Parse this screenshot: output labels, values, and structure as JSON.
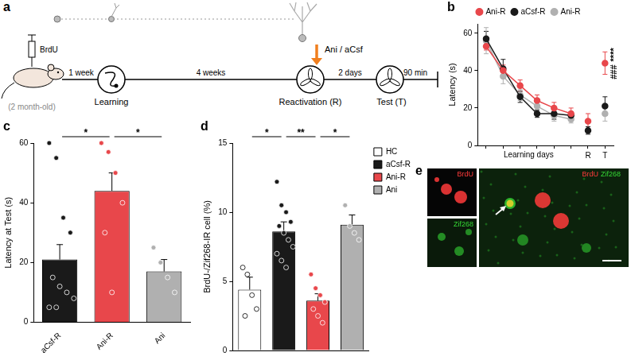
{
  "diagram": {
    "panel": "a",
    "labels": {
      "brdu": "BrdU",
      "age": "(2 month-old)",
      "interval1": "1 week",
      "learning": "Learning",
      "interval2": "4 weeks",
      "treatment": "Ani / aCsf",
      "reactivation": "Reactivation (R)",
      "interval3": "2 days",
      "test": "Test (T)",
      "interval4": "90 min"
    }
  },
  "chart_data": [
    {
      "panel": "b",
      "type": "line",
      "y_label": "Latency (s)",
      "x_label": "Learning days",
      "categories": [
        null,
        null,
        null,
        null,
        null,
        null,
        "R",
        "T"
      ],
      "series": [
        {
          "name": "Ani-R",
          "color": "#e8474b",
          "values": [
            53,
            40,
            32,
            24,
            20,
            17,
            13,
            44
          ],
          "errors": [
            2,
            3,
            3,
            3,
            3,
            3,
            4,
            6
          ]
        },
        {
          "name": "aCsf-R",
          "color": "#1a1a1a",
          "values": [
            57,
            41,
            26,
            17,
            17,
            16,
            8,
            21
          ],
          "errors": [
            4,
            5,
            3,
            2,
            3,
            2,
            2,
            5
          ]
        },
        {
          "name": "Ani-R",
          "color": "#b0b0b0",
          "values": [
            56,
            37,
            27,
            21,
            16,
            14,
            null,
            17
          ],
          "errors": [
            7,
            4,
            3,
            4,
            3,
            2,
            null,
            4
          ]
        }
      ],
      "ylim": [
        0,
        65
      ],
      "yticks": [
        0,
        20,
        40,
        60
      ],
      "legend": "top",
      "marker": "circle",
      "annotations": [
        {
          "category": "T",
          "text": "****"
        },
        {
          "category": "T",
          "text": "###"
        }
      ]
    },
    {
      "panel": "c",
      "type": "bar",
      "y_label": "Latency at Test (s)",
      "categories": [
        "aCsf-R",
        "Ani-R",
        "Ani"
      ],
      "values": [
        21,
        44,
        17
      ],
      "errors": [
        5,
        6,
        4
      ],
      "colors": [
        "#1a1a1a",
        "#e8474b",
        "#b0b0b0"
      ],
      "points": [
        [
          60,
          55,
          35,
          30,
          15,
          12,
          10,
          8,
          5,
          5
        ],
        [
          60,
          57,
          50,
          40,
          30,
          10
        ],
        [
          25,
          20,
          15,
          10
        ]
      ],
      "ylim": [
        0,
        60
      ],
      "yticks": [
        0,
        20,
        40,
        60
      ],
      "annotations": [
        {
          "between": [
            "aCsf-R",
            "Ani-R"
          ],
          "text": "*"
        },
        {
          "between": [
            "Ani-R",
            "Ani"
          ],
          "text": "*"
        }
      ]
    },
    {
      "panel": "d",
      "type": "bar",
      "y_label": "BrdU-/Zif268-IR cell (%)",
      "categories": [
        "HC",
        "aCsf-R",
        "Ani-R",
        "Ani"
      ],
      "values": [
        4.4,
        8.6,
        3.6,
        9.1
      ],
      "errors": [
        0.9,
        0.7,
        0.5,
        0.7
      ],
      "colors": [
        "#ffffff",
        "#1a1a1a",
        "#e8474b",
        "#b0b0b0"
      ],
      "points": [
        [
          6,
          5.5,
          4,
          3,
          2.5
        ],
        [
          12.2,
          10.5,
          10,
          9.3,
          9,
          8.5,
          8,
          7.5,
          7,
          6.5,
          6
        ],
        [
          5.5,
          4.5,
          4,
          3.5,
          3,
          2.5,
          2
        ],
        [
          10.5,
          9,
          8.5,
          8
        ]
      ],
      "ylim": [
        0,
        15
      ],
      "yticks": [
        0,
        5,
        10,
        15
      ],
      "legend": "right",
      "tick_labels": "y",
      "annotations": [
        {
          "between": [
            "HC",
            "aCsf-R"
          ],
          "text": "*"
        },
        {
          "between": [
            "aCsf-R",
            "Ani-R"
          ],
          "text": "**"
        },
        {
          "between": [
            "Ani-R",
            "Ani"
          ],
          "text": "*"
        }
      ]
    }
  ],
  "image": {
    "panel": "e",
    "channels": [
      {
        "label": "BrdU",
        "color": "#ff3b3b"
      },
      {
        "label": "Zif268",
        "color": "#35d835"
      }
    ]
  }
}
